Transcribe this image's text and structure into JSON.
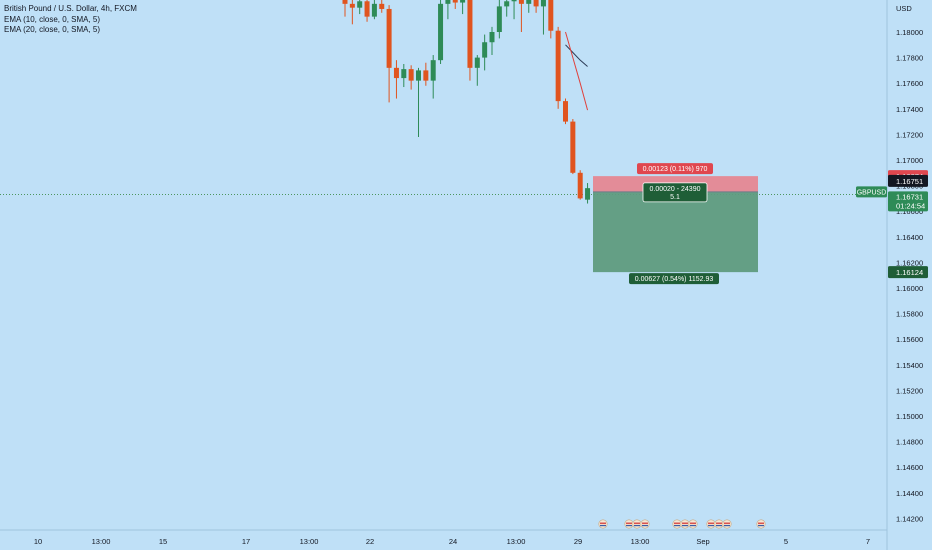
{
  "legend": {
    "symbol": "British Pound / U.S. Dollar, 4h, FXCM",
    "ema1": "EMA (10, close, 0, SMA, 5)",
    "ema2": "EMA (20, close, 0, SMA, 5)"
  },
  "colors": {
    "background": "#bfe0f7",
    "bull": "#2e8b57",
    "bear": "#e0541f",
    "stop_zone": "#e97d87",
    "target_zone": "#5f9b7e",
    "ema_fast": "#2b3a55",
    "ema_slow": "#e0413c"
  },
  "chart_data": {
    "type": "candlestick",
    "currency": "USD",
    "y_ticks": [
      "1.18000",
      "1.17800",
      "1.17600",
      "1.17400",
      "1.17200",
      "1.17000",
      "1.16800",
      "1.16600",
      "1.16400",
      "1.16200",
      "1.16000",
      "1.15800",
      "1.15600",
      "1.15400",
      "1.15200",
      "1.15000",
      "1.14800",
      "1.14600",
      "1.14400",
      "1.14200"
    ],
    "x_ticks": [
      "10",
      "13:00",
      "15",
      "17",
      "13:00",
      "22",
      "24",
      "13:00",
      "29",
      "13:00",
      "Sep",
      "5",
      "7"
    ],
    "candles": [
      {
        "o": 1.1825,
        "h": 1.1832,
        "l": 1.1812,
        "c": 1.1822
      },
      {
        "o": 1.1822,
        "h": 1.1826,
        "l": 1.1806,
        "c": 1.1819
      },
      {
        "o": 1.1819,
        "h": 1.1828,
        "l": 1.1814,
        "c": 1.1824
      },
      {
        "o": 1.1824,
        "h": 1.1829,
        "l": 1.1808,
        "c": 1.1812
      },
      {
        "o": 1.1812,
        "h": 1.1825,
        "l": 1.181,
        "c": 1.1822
      },
      {
        "o": 1.1822,
        "h": 1.1827,
        "l": 1.1815,
        "c": 1.1818
      },
      {
        "o": 1.1818,
        "h": 1.1821,
        "l": 1.1745,
        "c": 1.1772
      },
      {
        "o": 1.1772,
        "h": 1.1778,
        "l": 1.1748,
        "c": 1.1764
      },
      {
        "o": 1.1764,
        "h": 1.1775,
        "l": 1.1757,
        "c": 1.1771
      },
      {
        "o": 1.1771,
        "h": 1.1774,
        "l": 1.1755,
        "c": 1.1762
      },
      {
        "o": 1.1762,
        "h": 1.1772,
        "l": 1.1718,
        "c": 1.177
      },
      {
        "o": 1.177,
        "h": 1.1776,
        "l": 1.1758,
        "c": 1.1762
      },
      {
        "o": 1.1762,
        "h": 1.1782,
        "l": 1.1748,
        "c": 1.1778
      },
      {
        "o": 1.1778,
        "h": 1.183,
        "l": 1.1775,
        "c": 1.1822
      },
      {
        "o": 1.1822,
        "h": 1.1832,
        "l": 1.181,
        "c": 1.1828
      },
      {
        "o": 1.1828,
        "h": 1.1834,
        "l": 1.1818,
        "c": 1.1823
      },
      {
        "o": 1.1823,
        "h": 1.1829,
        "l": 1.1814,
        "c": 1.1826
      },
      {
        "o": 1.1826,
        "h": 1.183,
        "l": 1.1762,
        "c": 1.1772
      },
      {
        "o": 1.1772,
        "h": 1.1782,
        "l": 1.1758,
        "c": 1.178
      },
      {
        "o": 1.178,
        "h": 1.1798,
        "l": 1.177,
        "c": 1.1792
      },
      {
        "o": 1.1792,
        "h": 1.1804,
        "l": 1.1782,
        "c": 1.18
      },
      {
        "o": 1.18,
        "h": 1.1826,
        "l": 1.1795,
        "c": 1.182
      },
      {
        "o": 1.182,
        "h": 1.1828,
        "l": 1.1812,
        "c": 1.1824
      },
      {
        "o": 1.1824,
        "h": 1.1832,
        "l": 1.181,
        "c": 1.1828
      },
      {
        "o": 1.1828,
        "h": 1.1833,
        "l": 1.18,
        "c": 1.1822
      },
      {
        "o": 1.1822,
        "h": 1.183,
        "l": 1.1815,
        "c": 1.1826
      },
      {
        "o": 1.1826,
        "h": 1.1832,
        "l": 1.1815,
        "c": 1.182
      },
      {
        "o": 1.182,
        "h": 1.183,
        "l": 1.1798,
        "c": 1.1825
      },
      {
        "o": 1.1825,
        "h": 1.1836,
        "l": 1.1795,
        "c": 1.1801
      },
      {
        "o": 1.1801,
        "h": 1.1804,
        "l": 1.174,
        "c": 1.1746
      },
      {
        "o": 1.1746,
        "h": 1.1748,
        "l": 1.1728,
        "c": 1.173
      },
      {
        "o": 1.173,
        "h": 1.1732,
        "l": 1.1689,
        "c": 1.169
      },
      {
        "o": 1.169,
        "h": 1.1692,
        "l": 1.1669,
        "c": 1.167
      },
      {
        "o": 1.1669,
        "h": 1.1682,
        "l": 1.1666,
        "c": 1.1678
      }
    ],
    "ema10": [
      1.179,
      1.1784,
      1.1778,
      1.1773
    ],
    "ema20": [
      1.18,
      1.178,
      1.176,
      1.1739
    ],
    "position": {
      "type": "long",
      "entry": 1.16751,
      "stop": 1.16874,
      "target": 1.16124,
      "stop_label": "0.00123 (0.11%) 970",
      "entry_label_1": "0.00020 - 24390",
      "entry_label_2": "5.1",
      "target_label": "0.00627 (0.54%) 1152.93"
    },
    "price_badges": {
      "stop": "1.16874",
      "entry": "1.16751",
      "symbol": "GBPUSD",
      "last": "1.16731",
      "timer": "01:24:54",
      "target": "1.16124"
    }
  }
}
